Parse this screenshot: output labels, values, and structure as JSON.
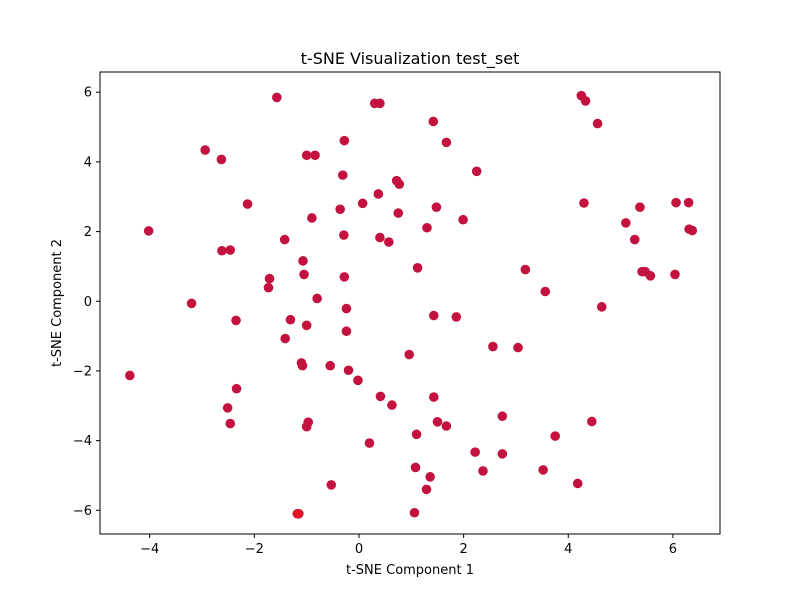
{
  "chart_data": {
    "type": "scatter",
    "title": "t-SNE Visualization test_set",
    "xlabel": "t-SNE Component 1",
    "ylabel": "t-SNE Component 2",
    "xlim": [
      -4.95,
      6.9
    ],
    "ylim": [
      -6.68,
      6.58
    ],
    "xticks": [
      -4,
      -2,
      0,
      2,
      4,
      6
    ],
    "yticks": [
      -6,
      -4,
      -2,
      0,
      2,
      4,
      6
    ],
    "xtick_labels": [
      "−4",
      "−2",
      "0",
      "2",
      "4",
      "6"
    ],
    "ytick_labels": [
      "−6",
      "−4",
      "−2",
      "0",
      "2",
      "4",
      "6"
    ],
    "grid": false,
    "marker_color": "#c4123f",
    "highlight_color": "#e8141e",
    "points": [
      [
        -1.57,
        5.85
      ],
      [
        0.3,
        5.68
      ],
      [
        0.4,
        5.68
      ],
      [
        4.25,
        5.9
      ],
      [
        4.33,
        5.75
      ],
      [
        4.56,
        5.1
      ],
      [
        1.42,
        5.16
      ],
      [
        1.67,
        4.56
      ],
      [
        -0.28,
        4.61
      ],
      [
        -2.94,
        4.34
      ],
      [
        -2.63,
        4.07
      ],
      [
        -1.0,
        4.19
      ],
      [
        -0.84,
        4.19
      ],
      [
        -0.31,
        3.62
      ],
      [
        2.25,
        3.73
      ],
      [
        0.37,
        3.08
      ],
      [
        0.72,
        3.46
      ],
      [
        0.77,
        3.36
      ],
      [
        -2.13,
        2.79
      ],
      [
        0.07,
        2.81
      ],
      [
        -0.36,
        2.64
      ],
      [
        -0.9,
        2.39
      ],
      [
        0.75,
        2.53
      ],
      [
        1.48,
        2.7
      ],
      [
        1.99,
        2.34
      ],
      [
        4.3,
        2.82
      ],
      [
        6.06,
        2.83
      ],
      [
        6.3,
        2.83
      ],
      [
        5.37,
        2.7
      ],
      [
        5.1,
        2.25
      ],
      [
        -4.02,
        2.02
      ],
      [
        1.3,
        2.11
      ],
      [
        6.31,
        2.07
      ],
      [
        6.37,
        2.03
      ],
      [
        -1.42,
        1.77
      ],
      [
        -0.29,
        1.9
      ],
      [
        0.4,
        1.83
      ],
      [
        0.57,
        1.7
      ],
      [
        5.27,
        1.77
      ],
      [
        -2.62,
        1.45
      ],
      [
        -2.46,
        1.47
      ],
      [
        -1.07,
        1.16
      ],
      [
        1.12,
        0.96
      ],
      [
        3.18,
        0.91
      ],
      [
        5.41,
        0.85
      ],
      [
        5.47,
        0.85
      ],
      [
        5.57,
        0.73
      ],
      [
        6.04,
        0.77
      ],
      [
        -1.05,
        0.77
      ],
      [
        -0.28,
        0.7
      ],
      [
        -1.71,
        0.65
      ],
      [
        -1.73,
        0.39
      ],
      [
        3.56,
        0.28
      ],
      [
        -0.8,
        0.08
      ],
      [
        -3.2,
        -0.06
      ],
      [
        4.64,
        -0.16
      ],
      [
        -0.24,
        -0.21
      ],
      [
        -2.35,
        -0.55
      ],
      [
        -1.31,
        -0.53
      ],
      [
        -1.0,
        -0.69
      ],
      [
        1.43,
        -0.41
      ],
      [
        1.86,
        -0.45
      ],
      [
        -0.24,
        -0.86
      ],
      [
        -1.41,
        -1.07
      ],
      [
        2.56,
        -1.3
      ],
      [
        3.04,
        -1.33
      ],
      [
        0.96,
        -1.53
      ],
      [
        -1.1,
        -1.77
      ],
      [
        -1.08,
        -1.85
      ],
      [
        -0.55,
        -1.85
      ],
      [
        -0.2,
        -1.98
      ],
      [
        -0.02,
        -2.27
      ],
      [
        -4.38,
        -2.13
      ],
      [
        -2.34,
        -2.51
      ],
      [
        1.43,
        -2.75
      ],
      [
        0.41,
        -2.73
      ],
      [
        0.63,
        -2.98
      ],
      [
        -2.51,
        -3.06
      ],
      [
        2.74,
        -3.3
      ],
      [
        -0.97,
        -3.47
      ],
      [
        -1.0,
        -3.6
      ],
      [
        1.5,
        -3.46
      ],
      [
        1.67,
        -3.58
      ],
      [
        4.45,
        -3.45
      ],
      [
        -2.46,
        -3.51
      ],
      [
        1.1,
        -3.82
      ],
      [
        3.75,
        -3.87
      ],
      [
        0.2,
        -4.07
      ],
      [
        2.22,
        -4.33
      ],
      [
        2.74,
        -4.38
      ],
      [
        1.08,
        -4.77
      ],
      [
        2.37,
        -4.87
      ],
      [
        3.52,
        -4.84
      ],
      [
        1.36,
        -5.04
      ],
      [
        -0.53,
        -5.27
      ],
      [
        4.18,
        -5.23
      ],
      [
        1.29,
        -5.4
      ],
      [
        1.06,
        -6.07
      ],
      [
        -1.15,
        -6.1
      ],
      [
        -1.18,
        -6.1
      ]
    ],
    "highlight_points": [
      [
        -1.17,
        -6.1
      ]
    ]
  }
}
